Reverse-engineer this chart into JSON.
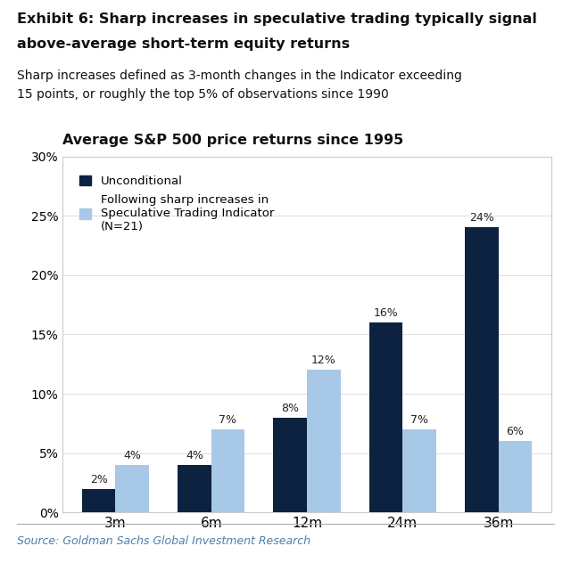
{
  "chart_title": "Average S&P 500 price returns since 1995",
  "main_title_line1": "Exhibit 6: Sharp increases in speculative trading typically signal",
  "main_title_line2": "above-average short-term equity returns",
  "subtitle_line1": "Sharp increases defined as 3-month changes in the Indicator exceeding",
  "subtitle_line2": "15 points, or roughly the top 5% of observations since 1990",
  "source": "Source: Goldman Sachs Global Investment Research",
  "categories": [
    "3m",
    "6m",
    "12m",
    "24m",
    "36m"
  ],
  "unconditional": [
    0.02,
    0.04,
    0.08,
    0.16,
    0.24
  ],
  "following": [
    0.04,
    0.07,
    0.12,
    0.07,
    0.06
  ],
  "unconditional_labels": [
    "2%",
    "4%",
    "8%",
    "16%",
    "24%"
  ],
  "following_labels": [
    "4%",
    "7%",
    "12%",
    "7%",
    "6%"
  ],
  "color_unconditional": "#0d2240",
  "color_following": "#a8c8e8",
  "legend_unconditional": "Unconditional",
  "legend_following": "Following sharp increases in\nSpeculative Trading Indicator\n(N=21)",
  "ylim": [
    0,
    0.3
  ],
  "yticks": [
    0.0,
    0.05,
    0.1,
    0.15,
    0.2,
    0.25,
    0.3
  ],
  "ytick_labels": [
    "0%",
    "5%",
    "10%",
    "15%",
    "20%",
    "25%",
    "30%"
  ],
  "bar_width": 0.35,
  "background_color": "#ffffff",
  "source_color": "#4a7faa",
  "main_title_color": "#111111",
  "subtitle_color": "#111111"
}
